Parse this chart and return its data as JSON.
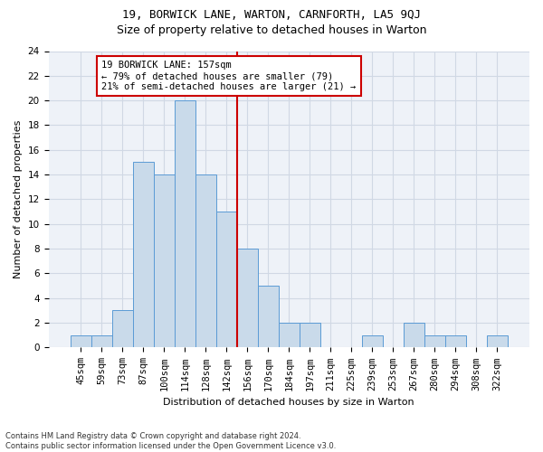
{
  "title1": "19, BORWICK LANE, WARTON, CARNFORTH, LA5 9QJ",
  "title2": "Size of property relative to detached houses in Warton",
  "xlabel": "Distribution of detached houses by size in Warton",
  "ylabel": "Number of detached properties",
  "footnote": "Contains HM Land Registry data © Crown copyright and database right 2024.\nContains public sector information licensed under the Open Government Licence v3.0.",
  "bin_labels": [
    "45sqm",
    "59sqm",
    "73sqm",
    "87sqm",
    "100sqm",
    "114sqm",
    "128sqm",
    "142sqm",
    "156sqm",
    "170sqm",
    "184sqm",
    "197sqm",
    "211sqm",
    "225sqm",
    "239sqm",
    "253sqm",
    "267sqm",
    "280sqm",
    "294sqm",
    "308sqm",
    "322sqm"
  ],
  "bar_values": [
    1,
    1,
    3,
    15,
    14,
    20,
    14,
    11,
    8,
    5,
    2,
    2,
    0,
    0,
    1,
    0,
    2,
    1,
    1,
    0,
    1
  ],
  "bar_color": "#c9daea",
  "bar_edgecolor": "#5b9bd5",
  "grid_color": "#d0d8e4",
  "bg_color": "#eef2f8",
  "vline_color": "#cc0000",
  "vline_index": 8,
  "annotation_text": "19 BORWICK LANE: 157sqm\n← 79% of detached houses are smaller (79)\n21% of semi-detached houses are larger (21) →",
  "annotation_box_color": "#cc0000",
  "ylim": [
    0,
    24
  ],
  "yticks": [
    0,
    2,
    4,
    6,
    8,
    10,
    12,
    14,
    16,
    18,
    20,
    22,
    24
  ],
  "title1_fontsize": 9,
  "title2_fontsize": 9,
  "ylabel_fontsize": 8,
  "xlabel_fontsize": 8,
  "tick_fontsize": 7.5,
  "annot_fontsize": 7.5,
  "footnote_fontsize": 6
}
